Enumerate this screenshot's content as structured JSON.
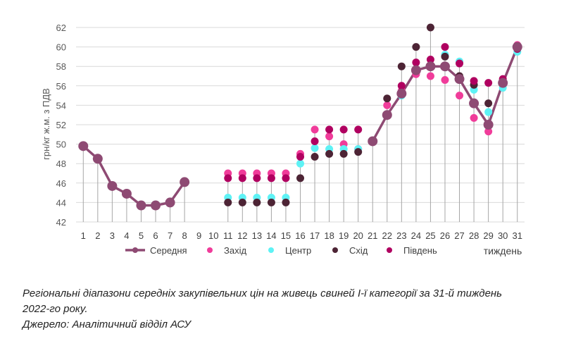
{
  "chart_data": {
    "type": "line",
    "ylabel": "грн/кг ж.м. з ПДВ",
    "xlabel": "тиждень",
    "ylim": [
      42,
      62
    ],
    "yticks": [
      42,
      44,
      46,
      48,
      50,
      52,
      54,
      56,
      58,
      60,
      62
    ],
    "x": [
      1,
      2,
      3,
      4,
      5,
      6,
      7,
      8,
      9,
      10,
      11,
      12,
      13,
      14,
      15,
      16,
      17,
      18,
      19,
      20,
      21,
      22,
      23,
      24,
      25,
      26,
      27,
      28,
      29,
      30,
      31
    ],
    "series": [
      {
        "name": "Середня",
        "style": "line-marker",
        "color": "#8e4a73",
        "values": [
          49.8,
          48.5,
          45.7,
          44.9,
          43.7,
          43.7,
          44.0,
          46.1,
          null,
          null,
          null,
          null,
          null,
          null,
          null,
          null,
          null,
          null,
          null,
          null,
          50.3,
          53.0,
          55.2,
          57.6,
          58.0,
          58.0,
          56.7,
          54.2,
          52.0,
          56.3,
          60.0
        ]
      },
      {
        "name": "Захід",
        "style": "marker",
        "color": "#f03c9a",
        "values": [
          null,
          null,
          null,
          null,
          null,
          null,
          null,
          null,
          null,
          null,
          47.0,
          47.0,
          47.0,
          47.0,
          47.0,
          49.0,
          51.5,
          50.8,
          50.0,
          49.5,
          null,
          54.0,
          55.5,
          57.2,
          57.0,
          56.6,
          55.0,
          52.7,
          51.3,
          56.5,
          60.2
        ]
      },
      {
        "name": "Центр",
        "style": "marker",
        "color": "#5ef2f5",
        "values": [
          null,
          null,
          null,
          null,
          null,
          null,
          null,
          null,
          null,
          null,
          44.5,
          44.5,
          44.5,
          44.5,
          44.5,
          48.0,
          49.6,
          49.5,
          49.5,
          49.5,
          null,
          53.0,
          55.0,
          57.6,
          58.0,
          59.2,
          58.5,
          55.6,
          53.3,
          55.8,
          59.5
        ]
      },
      {
        "name": "Схід",
        "style": "marker",
        "color": "#4d2435",
        "values": [
          null,
          null,
          null,
          null,
          null,
          null,
          null,
          null,
          null,
          null,
          44.0,
          44.0,
          44.0,
          44.0,
          44.0,
          46.5,
          48.7,
          49.0,
          49.0,
          49.2,
          null,
          54.7,
          58.0,
          60.0,
          62.0,
          59.0,
          57.0,
          56.1,
          54.2,
          56.3,
          59.8
        ]
      },
      {
        "name": "Південь",
        "style": "marker",
        "color": "#b00060",
        "values": [
          null,
          null,
          null,
          null,
          null,
          null,
          null,
          null,
          null,
          null,
          46.5,
          46.5,
          46.5,
          46.5,
          46.5,
          48.7,
          50.3,
          51.5,
          51.5,
          51.5,
          null,
          53.0,
          56.0,
          58.4,
          58.7,
          60.0,
          58.3,
          56.5,
          56.3,
          56.7,
          59.8
        ]
      }
    ],
    "grid": "horizontal",
    "drop_lines": true,
    "legend_position": "bottom"
  },
  "caption": {
    "line1": "Регіональні діапазони середніх закупівельних цін на живець свиней І-ї категорії за 31-й тиждень",
    "line2": "2022-го року.",
    "line3": "Джерело: Аналітичний відділ АСУ"
  }
}
